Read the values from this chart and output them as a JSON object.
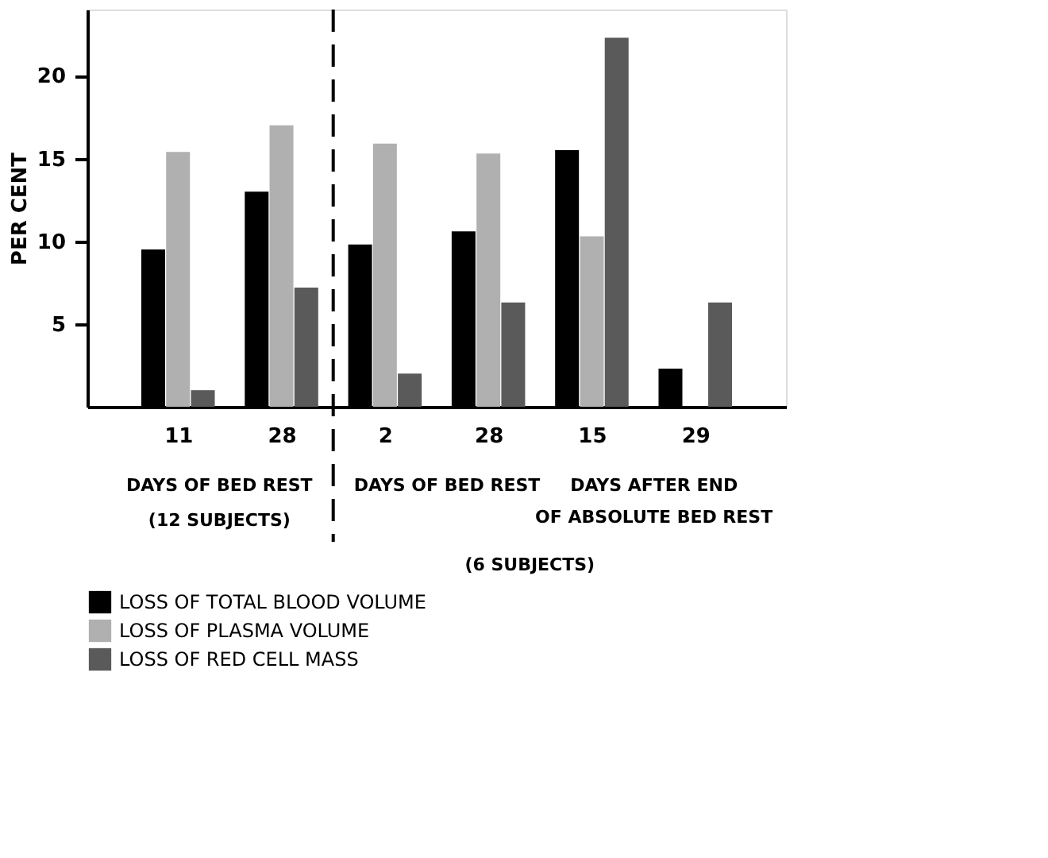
{
  "chart_data": {
    "type": "bar",
    "ylabel": "PER CENT",
    "categories": [
      "11",
      "28",
      "2",
      "28",
      "15",
      "29"
    ],
    "series": [
      {
        "name": "LOSS OF TOTAL BLOOD VOLUME",
        "color": "#000000",
        "values": [
          9.5,
          13.0,
          9.8,
          10.6,
          15.5,
          2.3
        ]
      },
      {
        "name": "LOSS OF PLASMA VOLUME",
        "color": "#b0b0b0",
        "values": [
          15.4,
          17.0,
          15.9,
          15.3,
          10.3,
          null
        ]
      },
      {
        "name": "LOSS OF RED CELL MASS",
        "color": "#5a5a5a",
        "values": [
          1.0,
          7.2,
          2.0,
          6.3,
          22.3,
          6.3
        ]
      }
    ],
    "ylim": [
      0,
      24
    ],
    "yticks": [
      5,
      10,
      15,
      20
    ],
    "grid": false,
    "legend": "bottom",
    "annotations": [
      "DAYS OF BED REST",
      "(12 SUBJECTS)",
      "DAYS OF BED REST",
      "DAYS AFTER END",
      "OF ABSOLUTE BED REST",
      "(6 SUBJECTS)"
    ]
  }
}
